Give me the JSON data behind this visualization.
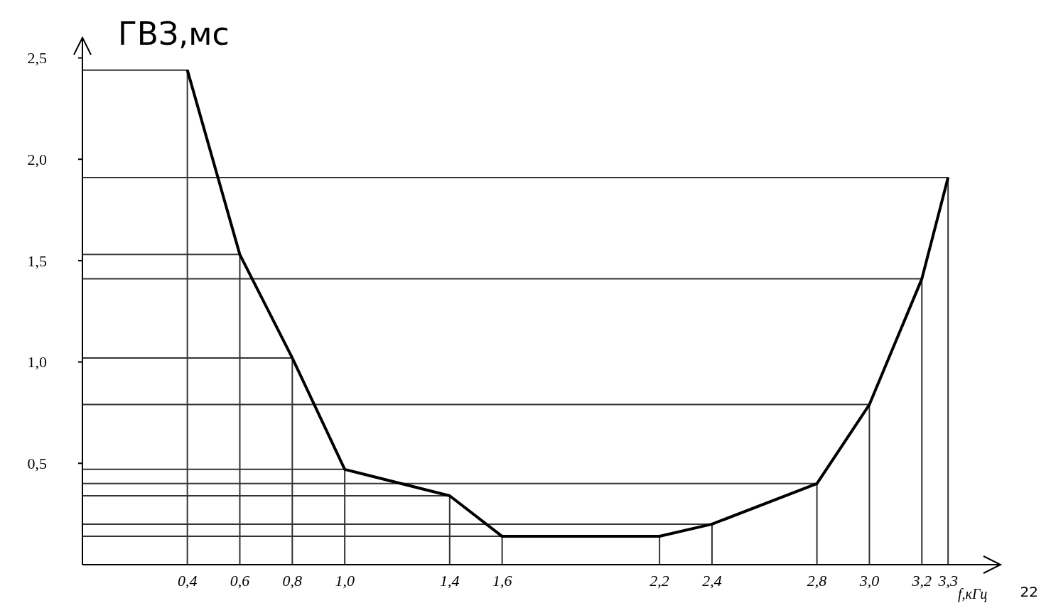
{
  "chart_data": {
    "type": "line",
    "ylabel": "ГВЗ,мс",
    "xlabel": "f,кГц",
    "annotations": [
      "22"
    ],
    "series": [
      {
        "color": "#333333",
        "x": [
          0,
          0.4,
          0.4,
          null,
          0,
          0.6,
          0.6,
          null,
          0,
          0.8,
          0.8,
          null,
          0,
          1.0,
          1.0,
          null,
          0,
          1.4,
          1.4,
          null,
          0,
          1.6,
          1.6,
          null,
          0,
          2.2,
          2.2,
          null,
          0,
          2.4,
          2.4,
          null,
          0,
          2.8,
          2.8,
          null,
          0,
          3.0,
          3.0,
          null,
          0,
          3.2,
          3.2,
          null,
          0,
          3.3,
          3.3
        ],
        "values": [
          2.44,
          2.44,
          0,
          null,
          1.53,
          1.53,
          0,
          null,
          1.02,
          1.02,
          0,
          null,
          0.47,
          0.47,
          0,
          null,
          0.34,
          0.34,
          0,
          null,
          0.14,
          0.14,
          0,
          null,
          0.14,
          0.14,
          0,
          null,
          0.2,
          0.2,
          0,
          null,
          0.4,
          0.4,
          0,
          null,
          0.79,
          0.79,
          0,
          null,
          1.41,
          1.41,
          0,
          null,
          1.91,
          1.91,
          0
        ]
      },
      {
        "color": "#000000",
        "x": [
          0.4,
          0.6,
          0.8,
          1.0,
          1.4,
          1.6,
          2.2,
          2.4,
          2.8,
          3.0,
          3.2,
          3.3
        ],
        "values": [
          2.44,
          1.53,
          1.02,
          0.47,
          0.34,
          0.14,
          0.14,
          0.2,
          0.4,
          0.79,
          1.41,
          1.91
        ]
      }
    ],
    "xlim": [
      0,
      3.5
    ],
    "ylim": [
      0,
      2.6
    ],
    "xticks": [
      {
        "value": 0.4,
        "label": "0,4"
      },
      {
        "value": 0.6,
        "label": "0,6"
      },
      {
        "value": 0.8,
        "label": "0,8"
      },
      {
        "value": 1.0,
        "label": "1,0"
      },
      {
        "value": 1.4,
        "label": "1,4"
      },
      {
        "value": 1.6,
        "label": "1,6"
      },
      {
        "value": 2.2,
        "label": "2,2"
      },
      {
        "value": 2.4,
        "label": "2,4"
      },
      {
        "value": 2.8,
        "label": "2,8"
      },
      {
        "value": 3.0,
        "label": "3,0"
      },
      {
        "value": 3.2,
        "label": "3,2"
      },
      {
        "value": 3.3,
        "label": "3,3"
      }
    ],
    "yticks": [
      {
        "value": 0.5,
        "label": "0,5"
      },
      {
        "value": 1.0,
        "label": "1,0"
      },
      {
        "value": 1.5,
        "label": "1,5"
      },
      {
        "value": 2.0,
        "label": "2,0"
      },
      {
        "value": 2.5,
        "label": "2,5"
      }
    ],
    "marker": "none",
    "line_style": "solid"
  }
}
